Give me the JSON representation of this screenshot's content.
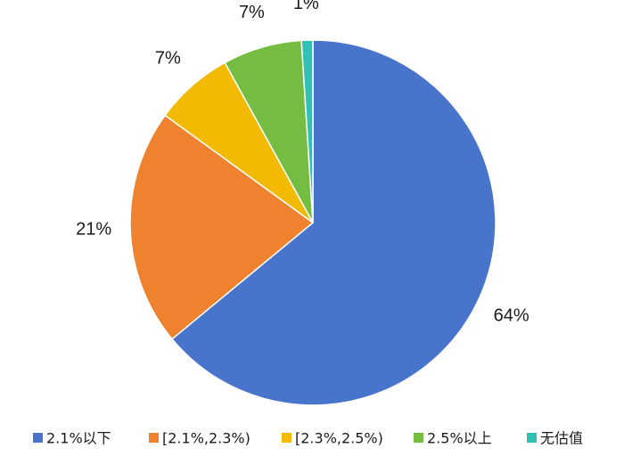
{
  "chart_data": {
    "type": "pie",
    "categories": [
      "2.1%以下",
      "[2.1%,2.3%)",
      "[2.3%,2.5%)",
      "2.5%以上",
      "无估值"
    ],
    "values": [
      64,
      21,
      7,
      7,
      1
    ],
    "data_labels": [
      "64%",
      "21%",
      "7%",
      "7%",
      "1%"
    ],
    "colors": [
      "#4874CB",
      "#EE822F",
      "#F2BA02",
      "#75BD42",
      "#30C0B4"
    ],
    "legend": {
      "placement": "bottom",
      "entries": [
        "2.1%以下",
        "[2.1%,2.3%)",
        "[2.3%,2.5%)",
        "2.5%以上",
        "无估值"
      ]
    },
    "start_angle": "12 o'clock",
    "direction": "clockwise"
  }
}
